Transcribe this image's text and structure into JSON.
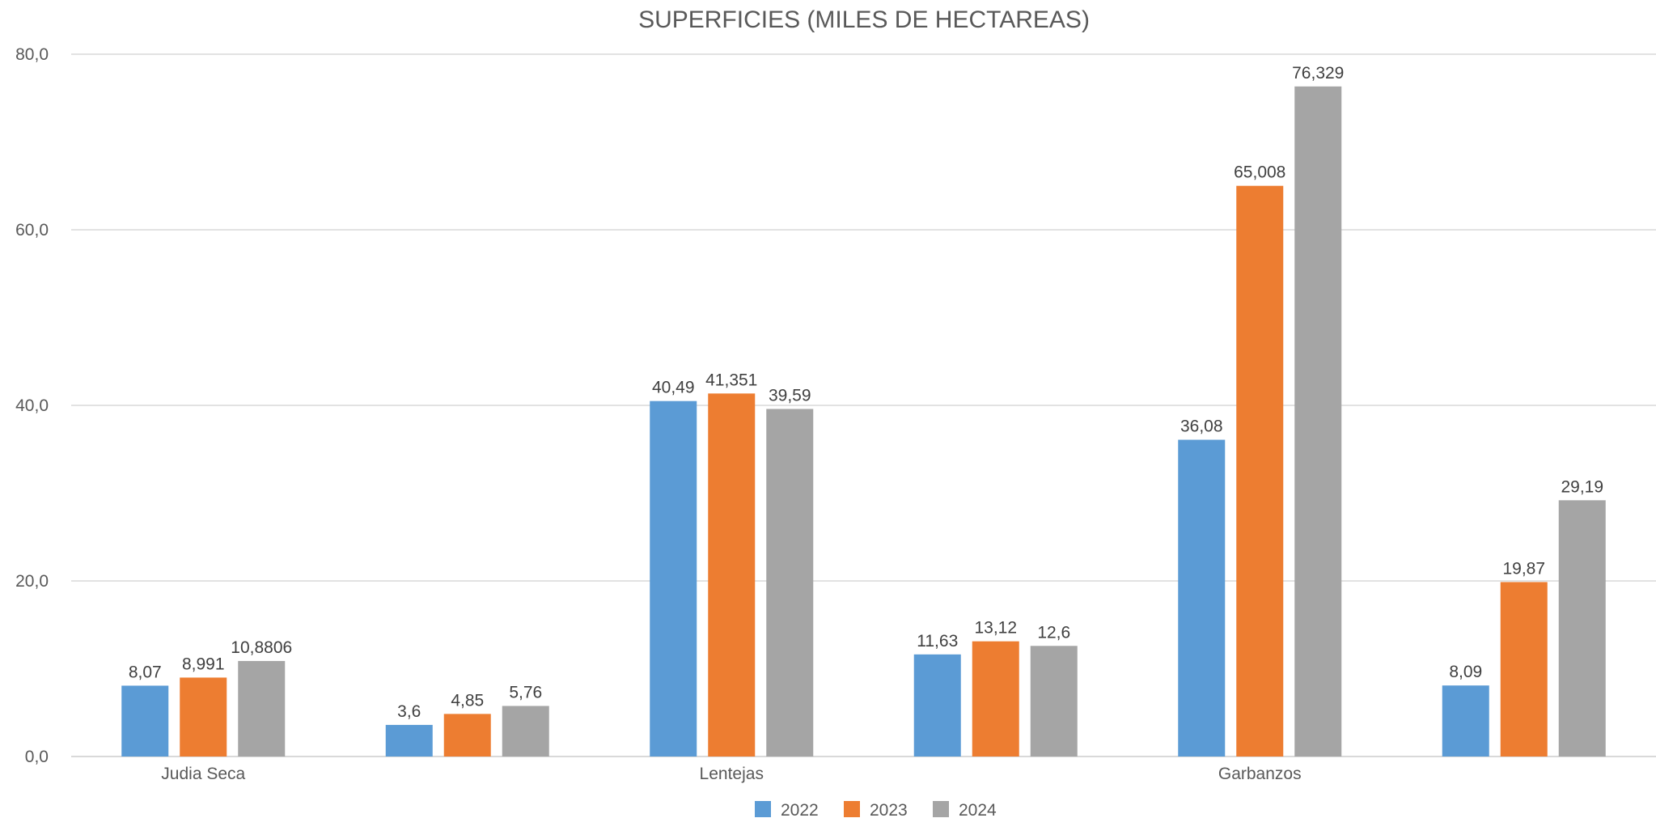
{
  "chart_data": {
    "type": "bar",
    "title": "SUPERFICIES (MILES DE HECTAREAS)",
    "xlabel": "",
    "ylabel": "",
    "categories": [
      "Judia Seca",
      "",
      "Lentejas",
      "",
      "Garbanzos",
      ""
    ],
    "series": [
      {
        "name": "2022",
        "color": "#5b9bd5",
        "values": [
          8.07,
          3.6,
          40.49,
          11.63,
          36.08,
          8.09
        ],
        "labels": [
          "8,07",
          "3,6",
          "40,49",
          "11,63",
          "36,08",
          "8,09"
        ]
      },
      {
        "name": "2023",
        "color": "#ed7d31",
        "values": [
          8.991,
          4.85,
          41.351,
          13.12,
          65.008,
          19.87
        ],
        "labels": [
          "8,991",
          "4,85",
          "41,351",
          "13,12",
          "65,008",
          "19,87"
        ]
      },
      {
        "name": "2024",
        "color": "#a5a5a5",
        "values": [
          10.8806,
          5.76,
          39.59,
          12.6,
          76.329,
          29.19
        ],
        "labels": [
          "10,8806",
          "5,76",
          "39,59",
          "12,6",
          "76,329",
          "29,19"
        ]
      }
    ],
    "ylim": [
      0,
      80
    ],
    "yticks": [
      0,
      20,
      40,
      60,
      80
    ],
    "ytick_labels": [
      "0,0",
      "20,0",
      "40,0",
      "60,0",
      "80,0"
    ],
    "grid": true,
    "legend_position": "bottom-center"
  }
}
